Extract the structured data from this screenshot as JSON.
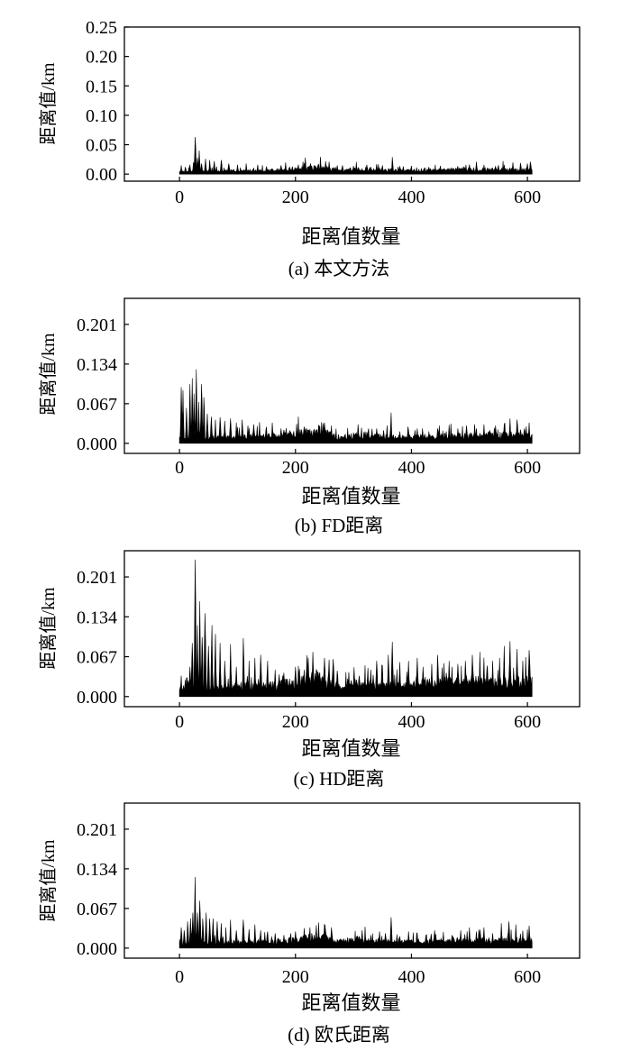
{
  "chart_data": [
    {
      "type": "area",
      "caption": "(a) 本文方法",
      "xlabel": "距离值数量",
      "ylabel": "距离值/km",
      "xlim": [
        -95,
        690
      ],
      "ylim": [
        -0.012,
        0.25
      ],
      "xticks": [
        "0",
        "200",
        "400",
        "600"
      ],
      "yticks": [
        "0.00",
        "0.05",
        "0.10",
        "0.15",
        "0.20",
        "0.25"
      ],
      "series": [
        {
          "n_points": 609,
          "baseline": 0.004,
          "segment_levels": [
            [
              0,
              0.003
            ],
            [
              150,
              0.005
            ],
            [
              200,
              0.007
            ],
            [
              240,
              0.011
            ],
            [
              270,
              0.006
            ],
            [
              320,
              0.007
            ],
            [
              380,
              0.005
            ],
            [
              450,
              0.006
            ],
            [
              520,
              0.007
            ],
            [
              609,
              0.007
            ]
          ],
          "peaks": [
            [
              3,
              0.015
            ],
            [
              10,
              0.012
            ],
            [
              18,
              0.016
            ],
            [
              24,
              0.02
            ],
            [
              27,
              0.063
            ],
            [
              31,
              0.028
            ],
            [
              34,
              0.04
            ],
            [
              38,
              0.018
            ],
            [
              45,
              0.026
            ],
            [
              52,
              0.024
            ],
            [
              60,
              0.022
            ],
            [
              72,
              0.024
            ],
            [
              85,
              0.018
            ],
            [
              100,
              0.016
            ],
            [
              115,
              0.018
            ],
            [
              135,
              0.016
            ],
            [
              150,
              0.013
            ],
            [
              175,
              0.015
            ],
            [
              190,
              0.012
            ],
            [
              205,
              0.016
            ],
            [
              235,
              0.013
            ],
            [
              252,
              0.022
            ],
            [
              258,
              0.021
            ],
            [
              300,
              0.014
            ],
            [
              330,
              0.012
            ],
            [
              350,
              0.015
            ],
            [
              367,
              0.029
            ],
            [
              400,
              0.014
            ],
            [
              430,
              0.012
            ],
            [
              450,
              0.014
            ],
            [
              480,
              0.013
            ],
            [
              500,
              0.016
            ],
            [
              512,
              0.021
            ],
            [
              525,
              0.016
            ],
            [
              545,
              0.013
            ],
            [
              560,
              0.016
            ],
            [
              575,
              0.02
            ],
            [
              588,
              0.019
            ],
            [
              600,
              0.018
            ],
            [
              605,
              0.021
            ]
          ]
        }
      ]
    },
    {
      "type": "area",
      "caption": "(b) FD距离",
      "xlabel": "距离值数量",
      "ylabel": "距离值/km",
      "xlim": [
        -95,
        690
      ],
      "ylim": [
        -0.017,
        0.245
      ],
      "xticks": [
        "0",
        "200",
        "400",
        "600"
      ],
      "yticks": [
        "0.000",
        "0.067",
        "0.134",
        "0.201"
      ],
      "series": [
        {
          "n_points": 609,
          "baseline": 0.006,
          "segment_levels": [
            [
              0,
              0.006
            ],
            [
              150,
              0.01
            ],
            [
              200,
              0.014
            ],
            [
              240,
              0.02
            ],
            [
              270,
              0.009
            ],
            [
              320,
              0.012
            ],
            [
              380,
              0.008
            ],
            [
              450,
              0.01
            ],
            [
              520,
              0.012
            ],
            [
              609,
              0.012
            ]
          ],
          "peaks": [
            [
              3,
              0.095
            ],
            [
              6,
              0.09
            ],
            [
              12,
              0.06
            ],
            [
              18,
              0.1
            ],
            [
              22,
              0.11
            ],
            [
              25,
              0.084
            ],
            [
              29,
              0.125
            ],
            [
              33,
              0.07
            ],
            [
              38,
              0.1
            ],
            [
              42,
              0.078
            ],
            [
              48,
              0.05
            ],
            [
              55,
              0.045
            ],
            [
              62,
              0.04
            ],
            [
              70,
              0.044
            ],
            [
              78,
              0.038
            ],
            [
              88,
              0.042
            ],
            [
              98,
              0.035
            ],
            [
              108,
              0.04
            ],
            [
              118,
              0.03
            ],
            [
              128,
              0.032
            ],
            [
              138,
              0.036
            ],
            [
              150,
              0.028
            ],
            [
              160,
              0.035
            ],
            [
              175,
              0.025
            ],
            [
              190,
              0.022
            ],
            [
              205,
              0.03
            ],
            [
              215,
              0.028
            ],
            [
              225,
              0.024
            ],
            [
              235,
              0.02
            ],
            [
              250,
              0.035
            ],
            [
              262,
              0.03
            ],
            [
              300,
              0.018
            ],
            [
              320,
              0.02
            ],
            [
              340,
              0.025
            ],
            [
              352,
              0.022
            ],
            [
              365,
              0.052
            ],
            [
              380,
              0.02
            ],
            [
              395,
              0.022
            ],
            [
              410,
              0.025
            ],
            [
              430,
              0.02
            ],
            [
              445,
              0.025
            ],
            [
              460,
              0.02
            ],
            [
              480,
              0.025
            ],
            [
              495,
              0.03
            ],
            [
              512,
              0.025
            ],
            [
              525,
              0.032
            ],
            [
              545,
              0.03
            ],
            [
              560,
              0.032
            ],
            [
              570,
              0.042
            ],
            [
              582,
              0.04
            ],
            [
              595,
              0.025
            ],
            [
              603,
              0.035
            ]
          ]
        }
      ]
    },
    {
      "type": "area",
      "caption": "(c) HD距离",
      "xlabel": "距离值数量",
      "ylabel": "距离值/km",
      "xlim": [
        -95,
        690
      ],
      "ylim": [
        -0.017,
        0.245
      ],
      "xticks": [
        "0",
        "200",
        "400",
        "600"
      ],
      "yticks": [
        "0.000",
        "0.067",
        "0.134",
        "0.201"
      ],
      "series": [
        {
          "n_points": 609,
          "baseline": 0.01,
          "segment_levels": [
            [
              0,
              0.01
            ],
            [
              150,
              0.015
            ],
            [
              200,
              0.022
            ],
            [
              240,
              0.03
            ],
            [
              270,
              0.015
            ],
            [
              320,
              0.02
            ],
            [
              380,
              0.015
            ],
            [
              450,
              0.02
            ],
            [
              520,
              0.022
            ],
            [
              609,
              0.022
            ]
          ],
          "peaks": [
            [
              3,
              0.035
            ],
            [
              10,
              0.028
            ],
            [
              18,
              0.05
            ],
            [
              22,
              0.09
            ],
            [
              27,
              0.23
            ],
            [
              31,
              0.12
            ],
            [
              35,
              0.16
            ],
            [
              39,
              0.1
            ],
            [
              44,
              0.14
            ],
            [
              50,
              0.085
            ],
            [
              56,
              0.12
            ],
            [
              62,
              0.105
            ],
            [
              70,
              0.09
            ],
            [
              78,
              0.06
            ],
            [
              88,
              0.088
            ],
            [
              98,
              0.05
            ],
            [
              110,
              0.098
            ],
            [
              120,
              0.06
            ],
            [
              130,
              0.065
            ],
            [
              140,
              0.07
            ],
            [
              152,
              0.06
            ],
            [
              165,
              0.045
            ],
            [
              180,
              0.04
            ],
            [
              200,
              0.05
            ],
            [
              215,
              0.045
            ],
            [
              230,
              0.075
            ],
            [
              250,
              0.065
            ],
            [
              258,
              0.062
            ],
            [
              265,
              0.063
            ],
            [
              290,
              0.03
            ],
            [
              310,
              0.035
            ],
            [
              330,
              0.045
            ],
            [
              340,
              0.06
            ],
            [
              350,
              0.052
            ],
            [
              360,
              0.07
            ],
            [
              367,
              0.092
            ],
            [
              380,
              0.058
            ],
            [
              395,
              0.06
            ],
            [
              410,
              0.065
            ],
            [
              420,
              0.05
            ],
            [
              435,
              0.055
            ],
            [
              445,
              0.07
            ],
            [
              460,
              0.04
            ],
            [
              470,
              0.05
            ],
            [
              480,
              0.055
            ],
            [
              493,
              0.06
            ],
            [
              505,
              0.07
            ],
            [
              518,
              0.075
            ],
            [
              530,
              0.045
            ],
            [
              540,
              0.06
            ],
            [
              552,
              0.065
            ],
            [
              560,
              0.085
            ],
            [
              570,
              0.093
            ],
            [
              582,
              0.08
            ],
            [
              592,
              0.06
            ],
            [
              603,
              0.078
            ]
          ]
        }
      ]
    },
    {
      "type": "area",
      "caption": "(d) 欧氏距离",
      "xlabel": "距离值数量",
      "ylabel": "距离值/km",
      "xlim": [
        -95,
        690
      ],
      "ylim": [
        -0.017,
        0.245
      ],
      "xticks": [
        "0",
        "200",
        "400",
        "600"
      ],
      "yticks": [
        "0.000",
        "0.067",
        "0.134",
        "0.201"
      ],
      "series": [
        {
          "n_points": 609,
          "baseline": 0.006,
          "segment_levels": [
            [
              0,
              0.006
            ],
            [
              150,
              0.009
            ],
            [
              200,
              0.012
            ],
            [
              240,
              0.018
            ],
            [
              270,
              0.009
            ],
            [
              320,
              0.011
            ],
            [
              380,
              0.008
            ],
            [
              450,
              0.01
            ],
            [
              520,
              0.011
            ],
            [
              609,
              0.011
            ]
          ],
          "peaks": [
            [
              3,
              0.035
            ],
            [
              8,
              0.03
            ],
            [
              14,
              0.045
            ],
            [
              19,
              0.05
            ],
            [
              23,
              0.06
            ],
            [
              27,
              0.12
            ],
            [
              31,
              0.06
            ],
            [
              35,
              0.08
            ],
            [
              40,
              0.05
            ],
            [
              46,
              0.06
            ],
            [
              52,
              0.05
            ],
            [
              58,
              0.05
            ],
            [
              65,
              0.045
            ],
            [
              72,
              0.042
            ],
            [
              80,
              0.035
            ],
            [
              88,
              0.048
            ],
            [
              98,
              0.03
            ],
            [
              110,
              0.048
            ],
            [
              120,
              0.032
            ],
            [
              130,
              0.04
            ],
            [
              140,
              0.03
            ],
            [
              152,
              0.028
            ],
            [
              165,
              0.025
            ],
            [
              180,
              0.022
            ],
            [
              200,
              0.028
            ],
            [
              215,
              0.025
            ],
            [
              225,
              0.035
            ],
            [
              235,
              0.022
            ],
            [
              250,
              0.04
            ],
            [
              262,
              0.035
            ],
            [
              290,
              0.018
            ],
            [
              310,
              0.02
            ],
            [
              330,
              0.022
            ],
            [
              345,
              0.028
            ],
            [
              355,
              0.025
            ],
            [
              365,
              0.052
            ],
            [
              380,
              0.02
            ],
            [
              395,
              0.028
            ],
            [
              410,
              0.025
            ],
            [
              425,
              0.022
            ],
            [
              440,
              0.03
            ],
            [
              455,
              0.025
            ],
            [
              470,
              0.022
            ],
            [
              485,
              0.03
            ],
            [
              500,
              0.035
            ],
            [
              512,
              0.028
            ],
            [
              525,
              0.035
            ],
            [
              540,
              0.025
            ],
            [
              555,
              0.042
            ],
            [
              568,
              0.045
            ],
            [
              580,
              0.04
            ],
            [
              592,
              0.028
            ],
            [
              603,
              0.038
            ]
          ]
        }
      ]
    }
  ]
}
